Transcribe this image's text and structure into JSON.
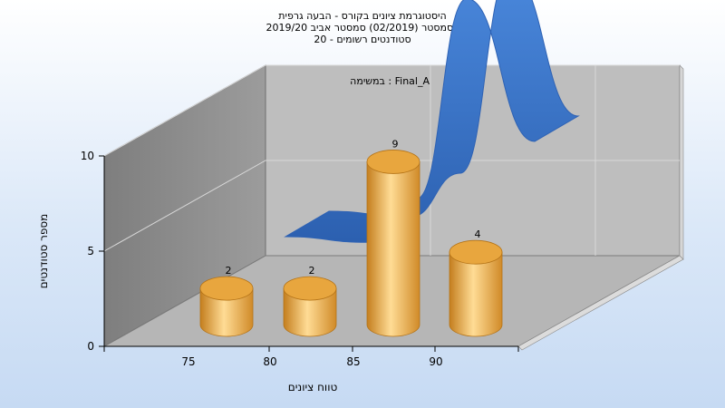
{
  "chart_data": {
    "type": "bar",
    "title_lines": [
      "היסטוגרמת ציונים בקורס - הבעה גרפית",
      "בסמסטר  (02/2019)  סמסטר אביב 2019/20",
      "סטודנטים רשומים - 20"
    ],
    "xlabel": "טווח ציונים",
    "ylabel": "מספר סטודנטים",
    "categories": [
      "75",
      "80",
      "85",
      "90"
    ],
    "values": [
      2,
      2,
      9,
      4
    ],
    "data_labels": [
      "2",
      "2",
      "9",
      "4"
    ],
    "yticks": [
      "0",
      "5",
      "10"
    ],
    "ylim": [
      0,
      10
    ],
    "legend_text": "במשימה : Final_A",
    "curve_values": [
      1,
      0.7,
      3,
      13.5,
      6
    ],
    "grid": true,
    "colors": {
      "bar": "#f0b04a",
      "bar_light": "#ffdc95",
      "bar_dark": "#c47e1e",
      "curve": "#3a78d0",
      "curve_dark": "#2e62b4",
      "back_wall": "#bdbdbd",
      "left_wall": "#8e8e8e",
      "floor": "#b4b4b4"
    }
  }
}
